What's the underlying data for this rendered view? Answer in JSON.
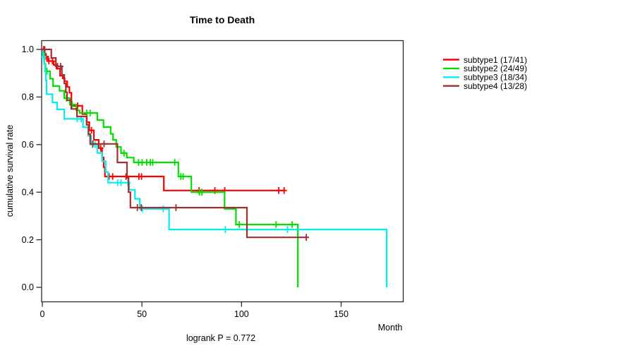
{
  "chart_data": {
    "type": "line",
    "subtype_chart": "kaplan-meier-step",
    "title": "Time to Death",
    "xlabel": "Month",
    "ylabel": "cumulative survival rate",
    "annotation": "logrank P = 0.772",
    "x_ticks": [
      0,
      50,
      100,
      150
    ],
    "y_ticks": [
      "0.0",
      "0.2",
      "0.4",
      "0.6",
      "0.8",
      "1.0"
    ],
    "xlim": [
      0,
      196
    ],
    "ylim": [
      0.0,
      1.0
    ],
    "grid": "off",
    "legend_position": "right-outside",
    "series": [
      {
        "name": "subtype1",
        "label": "subtype1 (17/41)",
        "color": "#ff0000",
        "end_month": 122,
        "points": [
          [
            0,
            1.0
          ],
          [
            1.2,
            0.97
          ],
          [
            2.7,
            0.951
          ],
          [
            5.7,
            0.935
          ],
          [
            7.1,
            0.92
          ],
          [
            8.9,
            0.89
          ],
          [
            10.2,
            0.878
          ],
          [
            11.2,
            0.866
          ],
          [
            12.5,
            0.842
          ],
          [
            13.6,
            0.818
          ],
          [
            14.6,
            0.763
          ],
          [
            20.1,
            0.728
          ],
          [
            22.3,
            0.694
          ],
          [
            23.6,
            0.66
          ],
          [
            25.9,
            0.62
          ],
          [
            28.3,
            0.585
          ],
          [
            30.0,
            0.546
          ],
          [
            30.8,
            0.505
          ],
          [
            31.4,
            0.466
          ],
          [
            61.0,
            0.407
          ]
        ],
        "censors": [
          [
            0.6,
            1.0
          ],
          [
            1.9,
            0.97
          ],
          [
            3.3,
            0.951
          ],
          [
            5.1,
            0.951
          ],
          [
            17.7,
            0.763
          ],
          [
            24.7,
            0.66
          ],
          [
            29.3,
            0.585
          ],
          [
            33.5,
            0.466
          ],
          [
            35.3,
            0.466
          ],
          [
            42.0,
            0.466
          ],
          [
            48.5,
            0.466
          ],
          [
            49.8,
            0.466
          ],
          [
            78.7,
            0.407
          ],
          [
            86.6,
            0.407
          ],
          [
            91.6,
            0.407
          ],
          [
            118.7,
            0.407
          ],
          [
            121.4,
            0.407
          ]
        ]
      },
      {
        "name": "subtype2",
        "label": "subtype2 (24/49)",
        "color": "#00df00",
        "end_month": 128.3,
        "points": [
          [
            0,
            1.0
          ],
          [
            1.0,
            0.939
          ],
          [
            1.6,
            0.908
          ],
          [
            3.9,
            0.877
          ],
          [
            5.4,
            0.846
          ],
          [
            8.6,
            0.826
          ],
          [
            11.0,
            0.795
          ],
          [
            13.8,
            0.768
          ],
          [
            17.0,
            0.744
          ],
          [
            18.7,
            0.733
          ],
          [
            27.6,
            0.703
          ],
          [
            30.7,
            0.674
          ],
          [
            34.3,
            0.645
          ],
          [
            35.5,
            0.62
          ],
          [
            37.1,
            0.59
          ],
          [
            39.5,
            0.564
          ],
          [
            42.4,
            0.545
          ],
          [
            45.9,
            0.525
          ],
          [
            68.3,
            0.466
          ],
          [
            74.8,
            0.4
          ],
          [
            91.5,
            0.33
          ],
          [
            97.2,
            0.264
          ],
          [
            128.3,
            0.0
          ]
        ],
        "censors": [
          [
            2.3,
            0.908
          ],
          [
            12.1,
            0.795
          ],
          [
            15.0,
            0.768
          ],
          [
            22.3,
            0.733
          ],
          [
            24.0,
            0.733
          ],
          [
            41.0,
            0.564
          ],
          [
            48.3,
            0.525
          ],
          [
            50.1,
            0.525
          ],
          [
            52.4,
            0.525
          ],
          [
            54.2,
            0.525
          ],
          [
            55.4,
            0.525
          ],
          [
            66.5,
            0.525
          ],
          [
            69.5,
            0.466
          ],
          [
            70.7,
            0.466
          ],
          [
            78.9,
            0.4
          ],
          [
            80.1,
            0.4
          ],
          [
            98.9,
            0.264
          ],
          [
            117.3,
            0.264
          ],
          [
            125.4,
            0.264
          ]
        ]
      },
      {
        "name": "subtype3",
        "label": "subtype3 (18/34)",
        "color": "#00eeee",
        "end_month": 172.9,
        "points": [
          [
            0,
            1.0
          ],
          [
            0.3,
            0.97
          ],
          [
            0.9,
            0.94
          ],
          [
            1.4,
            0.91
          ],
          [
            1.8,
            0.87
          ],
          [
            2.1,
            0.812
          ],
          [
            5.1,
            0.777
          ],
          [
            7.4,
            0.748
          ],
          [
            11.0,
            0.708
          ],
          [
            20.4,
            0.673
          ],
          [
            23.0,
            0.637
          ],
          [
            24.6,
            0.6
          ],
          [
            27.6,
            0.565
          ],
          [
            30.0,
            0.53
          ],
          [
            31.8,
            0.485
          ],
          [
            33.0,
            0.44
          ],
          [
            43.6,
            0.41
          ],
          [
            46.5,
            0.372
          ],
          [
            48.9,
            0.33
          ],
          [
            63.6,
            0.243
          ],
          [
            172.9,
            0.0
          ]
        ],
        "censors": [
          [
            0.6,
            0.97
          ],
          [
            17.5,
            0.708
          ],
          [
            19.5,
            0.708
          ],
          [
            25.2,
            0.6
          ],
          [
            26.5,
            0.6
          ],
          [
            37.8,
            0.44
          ],
          [
            39.5,
            0.44
          ],
          [
            42.9,
            0.44
          ],
          [
            50.2,
            0.33
          ],
          [
            60.7,
            0.33
          ],
          [
            91.9,
            0.243
          ],
          [
            123.1,
            0.243
          ]
        ]
      },
      {
        "name": "subtype4",
        "label": "subtype4 (13/28)",
        "color": "#a52e2e",
        "end_month": 133,
        "points": [
          [
            0,
            1.0
          ],
          [
            4.5,
            0.964
          ],
          [
            6.8,
            0.929
          ],
          [
            9.8,
            0.893
          ],
          [
            11.0,
            0.857
          ],
          [
            11.8,
            0.82
          ],
          [
            12.4,
            0.786
          ],
          [
            14.5,
            0.75
          ],
          [
            17.4,
            0.718
          ],
          [
            22.2,
            0.683
          ],
          [
            23.2,
            0.644
          ],
          [
            24.0,
            0.603
          ],
          [
            37.7,
            0.525
          ],
          [
            42.5,
            0.46
          ],
          [
            43.3,
            0.4
          ],
          [
            44.2,
            0.335
          ],
          [
            102.7,
            0.21
          ]
        ],
        "censors": [
          [
            1.2,
            1.0
          ],
          [
            7.6,
            0.929
          ],
          [
            9.2,
            0.929
          ],
          [
            25.4,
            0.603
          ],
          [
            31.0,
            0.603
          ],
          [
            47.7,
            0.335
          ],
          [
            49.7,
            0.335
          ],
          [
            67.1,
            0.335
          ],
          [
            132.5,
            0.21
          ]
        ]
      }
    ]
  }
}
